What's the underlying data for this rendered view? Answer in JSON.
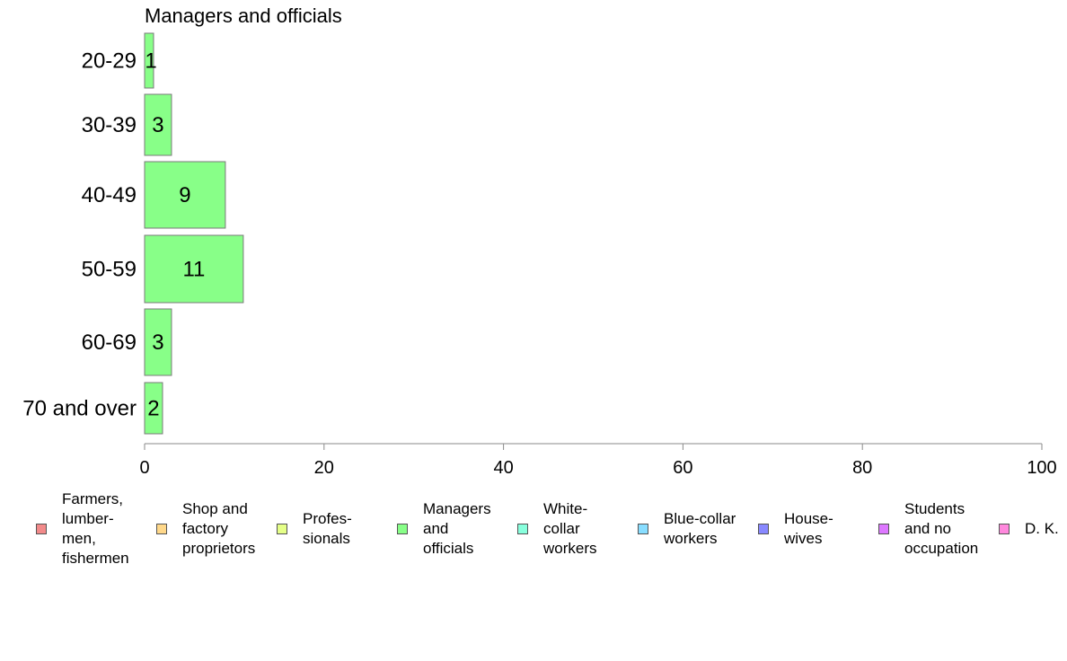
{
  "chart_data": {
    "type": "bar",
    "orientation": "horizontal",
    "title": "Managers and officials",
    "categories": [
      "20-29",
      "30-39",
      "40-49",
      "50-59",
      "60-69",
      "70 and over"
    ],
    "values": [
      1,
      3,
      9,
      11,
      3,
      2
    ],
    "data_labels": [
      "1",
      "3",
      "9",
      "11",
      "3",
      "2"
    ],
    "bar_color": "#88FF88",
    "xlim": [
      0,
      100
    ],
    "xticks": [
      0,
      20,
      40,
      60,
      80,
      100
    ],
    "xtick_labels": [
      "0",
      "20",
      "40",
      "60",
      "80",
      "100"
    ],
    "grid": false,
    "legend_position": "bottom",
    "legend": [
      {
        "label": "Farmers,\nlumber-\nmen,\nfishermen",
        "color": "#F28A8A"
      },
      {
        "label": "Shop and\nfactory\nproprietors",
        "color": "#FFD88A"
      },
      {
        "label": "Profes-\nsionals",
        "color": "#E5FF88"
      },
      {
        "label": "Managers\nand\nofficials",
        "color": "#88FF88"
      },
      {
        "label": "White-\ncollar\nworkers",
        "color": "#88FFDD"
      },
      {
        "label": "Blue-collar\nworkers",
        "color": "#88DDFF"
      },
      {
        "label": "House-\nwives",
        "color": "#8888FF"
      },
      {
        "label": "Students\nand no\noccupation",
        "color": "#DD77FF"
      },
      {
        "label": "D. K.",
        "color": "#FF88DD"
      }
    ]
  }
}
